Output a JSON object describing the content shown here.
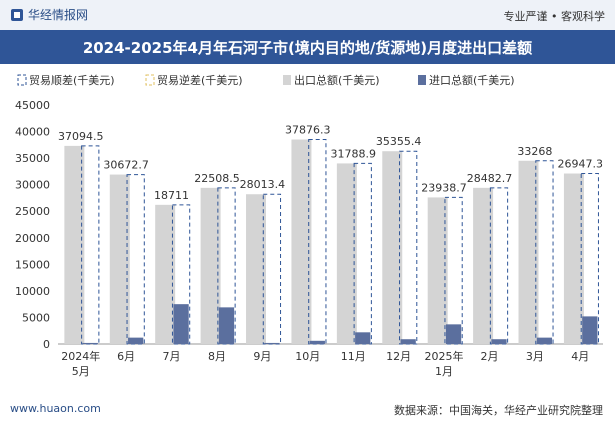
{
  "header": {
    "brand": "华经情报网",
    "tagline": "专业严谨 • 客观科学"
  },
  "title": "2024-2025年4月年石河子市(境内目的地/货源地)月度进出口差额",
  "footer": {
    "left": "www.huaon.com",
    "right": "数据来源：中国海关，华经产业研究院整理"
  },
  "colors": {
    "export": "#d4d4d4",
    "import": "#5b6f9e",
    "surplus_outline": "#2f5597",
    "title_bg": "#2f5597"
  },
  "chart_data": {
    "type": "bar",
    "categories": [
      [
        "2024年",
        "5月"
      ],
      [
        "6月"
      ],
      [
        "7月"
      ],
      [
        "8月"
      ],
      [
        "9月"
      ],
      [
        "10月"
      ],
      [
        "11月"
      ],
      [
        "12月"
      ],
      [
        "2025年",
        "1月"
      ],
      [
        "2月"
      ],
      [
        "3月"
      ],
      [
        "4月"
      ]
    ],
    "ylim": [
      0,
      45000
    ],
    "yticks": [
      0,
      5000,
      10000,
      15000,
      20000,
      25000,
      30000,
      35000,
      40000,
      45000
    ],
    "legend": [
      "贸易顺差(千美元)",
      "贸易逆差(千美元)",
      "出口总额(千美元)",
      "进口总额(千美元)"
    ],
    "series": [
      {
        "name": "贸易顺差(千美元)",
        "values": [
          37094.5,
          30672.7,
          18711,
          22508.5,
          28013.4,
          37876.3,
          31788.9,
          35355.4,
          23938.7,
          28482.7,
          33268,
          26947.3
        ]
      },
      {
        "name": "出口总额(千美元)",
        "values": [
          37300,
          31900,
          26200,
          29400,
          28200,
          38500,
          34000,
          36300,
          27600,
          29400,
          34500,
          32100
        ]
      },
      {
        "name": "进口总额(千美元)",
        "values": [
          200,
          1200,
          7500,
          6900,
          200,
          600,
          2200,
          900,
          3700,
          900,
          1200,
          5200
        ]
      }
    ],
    "data_labels": [
      "37094.5",
      "30672.7",
      "18711",
      "22508.5",
      "28013.4",
      "37876.3",
      "31788.9",
      "35355.4",
      "23938.7",
      "28482.7",
      "33268",
      "26947.3"
    ]
  }
}
